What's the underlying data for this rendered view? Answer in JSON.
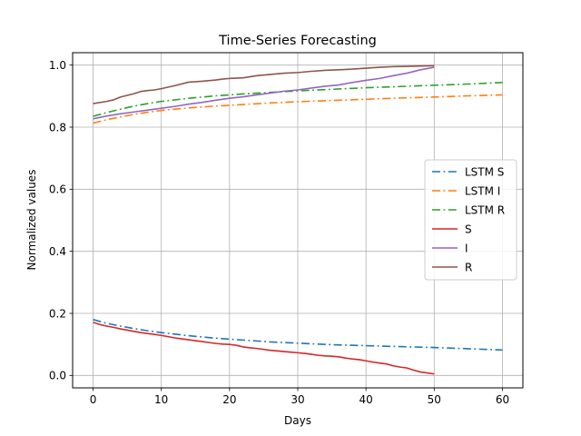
{
  "chart_data": {
    "type": "line",
    "title": "Time-Series Forecasting",
    "xlabel": "Days",
    "ylabel": "Normalized values",
    "xlim": [
      -3,
      63
    ],
    "ylim": [
      -0.04,
      1.04
    ],
    "x_ticks": [
      0,
      10,
      20,
      30,
      40,
      50,
      60
    ],
    "y_ticks": [
      0.0,
      0.2,
      0.4,
      0.6,
      0.8,
      1.0
    ],
    "x_tick_labels": [
      "0",
      "10",
      "20",
      "30",
      "40",
      "50",
      "60"
    ],
    "y_tick_labels": [
      "0.0",
      "0.2",
      "0.4",
      "0.6",
      "0.8",
      "1.0"
    ],
    "grid": true,
    "legend_position": "center-right",
    "series": [
      {
        "name": "LSTM S",
        "color": "#1f77b4",
        "style": "dashdot",
        "x": [
          0,
          2,
          4,
          6,
          8,
          10,
          14,
          18,
          22,
          26,
          30,
          35,
          40,
          45,
          50,
          55,
          60
        ],
        "y": [
          0.18,
          0.168,
          0.159,
          0.151,
          0.144,
          0.138,
          0.128,
          0.12,
          0.114,
          0.108,
          0.104,
          0.099,
          0.096,
          0.093,
          0.09,
          0.086,
          0.082
        ]
      },
      {
        "name": "LSTM I",
        "color": "#ff7f0e",
        "style": "dashdot",
        "x": [
          0,
          2,
          4,
          6,
          8,
          10,
          14,
          18,
          22,
          26,
          30,
          35,
          40,
          45,
          50,
          55,
          60
        ],
        "y": [
          0.813,
          0.824,
          0.833,
          0.841,
          0.848,
          0.854,
          0.862,
          0.868,
          0.873,
          0.878,
          0.882,
          0.886,
          0.89,
          0.894,
          0.897,
          0.901,
          0.904
        ]
      },
      {
        "name": "LSTM R",
        "color": "#2ca02c",
        "style": "dashdot",
        "x": [
          0,
          2,
          4,
          6,
          8,
          10,
          14,
          18,
          22,
          26,
          30,
          35,
          40,
          45,
          50,
          55,
          60
        ],
        "y": [
          0.835,
          0.847,
          0.858,
          0.868,
          0.876,
          0.883,
          0.893,
          0.901,
          0.907,
          0.912,
          0.917,
          0.922,
          0.927,
          0.931,
          0.935,
          0.939,
          0.944
        ]
      },
      {
        "name": "S",
        "color": "#d62728",
        "style": "solid",
        "x": [
          0,
          1,
          2,
          3,
          4,
          5,
          6,
          7,
          8,
          9,
          10,
          11,
          12,
          13,
          14,
          15,
          16,
          17,
          18,
          19,
          20,
          21,
          22,
          23,
          24,
          25,
          26,
          27,
          28,
          29,
          30,
          31,
          32,
          33,
          34,
          35,
          36,
          37,
          38,
          39,
          40,
          41,
          42,
          43,
          44,
          45,
          46,
          47,
          48,
          49,
          50
        ],
        "y": [
          0.171,
          0.164,
          0.159,
          0.155,
          0.15,
          0.146,
          0.142,
          0.138,
          0.135,
          0.132,
          0.129,
          0.125,
          0.121,
          0.118,
          0.115,
          0.112,
          0.109,
          0.106,
          0.103,
          0.101,
          0.1,
          0.097,
          0.092,
          0.089,
          0.087,
          0.084,
          0.081,
          0.079,
          0.077,
          0.075,
          0.073,
          0.071,
          0.068,
          0.065,
          0.063,
          0.062,
          0.06,
          0.056,
          0.053,
          0.051,
          0.047,
          0.043,
          0.04,
          0.037,
          0.031,
          0.027,
          0.024,
          0.017,
          0.011,
          0.008,
          0.005
        ]
      },
      {
        "name": "I",
        "color": "#9467bd",
        "style": "solid",
        "x": [
          0,
          2,
          4,
          6,
          8,
          10,
          12,
          14,
          16,
          18,
          20,
          22,
          24,
          26,
          28,
          30,
          32,
          34,
          36,
          38,
          40,
          42,
          44,
          46,
          48,
          50
        ],
        "y": [
          0.827,
          0.836,
          0.843,
          0.849,
          0.855,
          0.861,
          0.867,
          0.874,
          0.88,
          0.887,
          0.893,
          0.898,
          0.904,
          0.91,
          0.916,
          0.92,
          0.926,
          0.932,
          0.936,
          0.944,
          0.951,
          0.957,
          0.966,
          0.974,
          0.985,
          0.993
        ]
      },
      {
        "name": "R",
        "color": "#8c564b",
        "style": "solid",
        "x": [
          0,
          2,
          3,
          4,
          6,
          7,
          8,
          9,
          10,
          12,
          14,
          16,
          18,
          19,
          20,
          22,
          24,
          26,
          28,
          30,
          32,
          34,
          36,
          38,
          40,
          42,
          44,
          46,
          48,
          50
        ],
        "y": [
          0.876,
          0.883,
          0.888,
          0.897,
          0.908,
          0.915,
          0.918,
          0.92,
          0.924,
          0.934,
          0.945,
          0.948,
          0.952,
          0.955,
          0.957,
          0.959,
          0.966,
          0.97,
          0.974,
          0.976,
          0.98,
          0.983,
          0.985,
          0.987,
          0.99,
          0.993,
          0.995,
          0.996,
          0.997,
          0.998
        ]
      }
    ]
  }
}
